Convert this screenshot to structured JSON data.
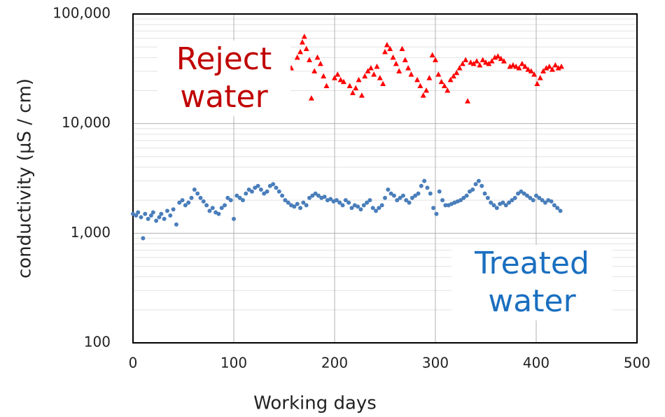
{
  "chart_data": {
    "type": "scatter",
    "xlabel": "Working days",
    "ylabel": "conductivity (µS / cm)",
    "xlim": [
      0,
      500
    ],
    "xticks": [
      0,
      100,
      200,
      300,
      400,
      500
    ],
    "ylim": [
      100,
      100000
    ],
    "yticks": [
      100,
      {
        "value": 1000,
        "label": "1,000"
      },
      {
        "value": 10000,
        "label": "10,000"
      },
      {
        "value": 100000,
        "label": "100,000"
      }
    ],
    "log_scale_y": true,
    "grid": true,
    "minor_grid": true,
    "series": [
      {
        "name": "Treated water",
        "color": "#4a7ebb",
        "marker": "circle",
        "x": [
          0,
          3,
          5,
          8,
          10,
          12,
          15,
          18,
          20,
          23,
          26,
          28,
          31,
          34,
          37,
          40,
          43,
          46,
          49,
          52,
          55,
          58,
          61,
          64,
          67,
          70,
          73,
          76,
          79,
          82,
          85,
          88,
          91,
          94,
          97,
          100,
          103,
          106,
          109,
          112,
          115,
          118,
          121,
          124,
          127,
          130,
          133,
          136,
          139,
          142,
          145,
          148,
          151,
          154,
          157,
          160,
          163,
          166,
          169,
          172,
          175,
          178,
          181,
          184,
          187,
          190,
          193,
          196,
          199,
          202,
          205,
          208,
          211,
          214,
          217,
          220,
          223,
          226,
          229,
          232,
          235,
          238,
          241,
          244,
          247,
          250,
          253,
          256,
          259,
          262,
          265,
          268,
          271,
          274,
          277,
          280,
          283,
          286,
          289,
          292,
          295,
          298,
          301,
          304,
          307,
          310,
          313,
          316,
          319,
          322,
          325,
          328,
          331,
          334,
          337,
          340,
          343,
          346,
          349,
          352,
          355,
          358,
          361,
          364,
          367,
          370,
          373,
          376,
          379,
          382,
          385,
          388,
          391,
          394,
          397,
          400,
          403,
          406,
          409,
          412,
          415,
          418,
          421,
          424
        ],
        "values": [
          1500,
          1450,
          1550,
          1400,
          900,
          1500,
          1350,
          1450,
          1550,
          1300,
          1400,
          1500,
          1350,
          1600,
          1450,
          1650,
          1200,
          1900,
          2000,
          1800,
          1900,
          2100,
          2500,
          2300,
          2100,
          1950,
          1800,
          1600,
          1700,
          1550,
          1500,
          1700,
          1800,
          2100,
          2000,
          1350,
          2200,
          2100,
          2000,
          2300,
          2500,
          2400,
          2600,
          2700,
          2500,
          2300,
          2400,
          2700,
          2800,
          2600,
          2400,
          2200,
          2000,
          1900,
          1800,
          1750,
          1850,
          1700,
          1900,
          1800,
          2100,
          2200,
          2300,
          2200,
          2100,
          2150,
          2000,
          2050,
          1950,
          2000,
          1900,
          1800,
          2000,
          1900,
          1700,
          1800,
          1750,
          1650,
          1800,
          1900,
          2000,
          1700,
          1600,
          1700,
          1800,
          2100,
          2500,
          2300,
          2200,
          2000,
          2100,
          2200,
          2000,
          1900,
          2100,
          2200,
          2300,
          2700,
          3000,
          2600,
          2300,
          1700,
          1500,
          2400,
          2000,
          1800,
          1800,
          1850,
          1900,
          1950,
          2000,
          2100,
          2200,
          2400,
          2500,
          2800,
          3000,
          2700,
          2300,
          2100,
          1900,
          1800,
          1700,
          1850,
          1900,
          1800,
          1900,
          2000,
          2100,
          2300,
          2400,
          2300,
          2200,
          2100,
          2000,
          2200,
          2100,
          2000,
          1900,
          2000,
          1950,
          1800,
          1700,
          1600
        ]
      },
      {
        "name": "Reject water",
        "color": "#ff0000",
        "marker": "triangle",
        "x": [
          157,
          163,
          166,
          168,
          170,
          172,
          175,
          177,
          180,
          183,
          186,
          189,
          192,
          200,
          203,
          206,
          209,
          215,
          218,
          221,
          224,
          227,
          230,
          233,
          236,
          239,
          242,
          245,
          248,
          250,
          252,
          255,
          258,
          261,
          264,
          267,
          270,
          273,
          276,
          282,
          285,
          288,
          291,
          294,
          297,
          300,
          303,
          306,
          309,
          312,
          315,
          318,
          321,
          324,
          327,
          330,
          332,
          335,
          338,
          341,
          344,
          347,
          350,
          353,
          356,
          359,
          362,
          365,
          368,
          374,
          377,
          380,
          383,
          386,
          389,
          392,
          395,
          398,
          401,
          404,
          407,
          410,
          413,
          416,
          419,
          422,
          425
        ],
        "values": [
          32000,
          40000,
          45000,
          55000,
          62000,
          48000,
          38000,
          17000,
          30000,
          40000,
          35000,
          27000,
          22000,
          26000,
          28000,
          25000,
          24000,
          22000,
          19000,
          21000,
          25000,
          18000,
          27000,
          30000,
          32000,
          28000,
          33000,
          26000,
          23000,
          45000,
          52000,
          48000,
          40000,
          35000,
          30000,
          48000,
          38000,
          32000,
          28000,
          25000,
          22000,
          18000,
          20000,
          26000,
          42000,
          38000,
          28000,
          24000,
          22000,
          20000,
          25000,
          27000,
          29000,
          32000,
          35000,
          38000,
          16000,
          36000,
          35000,
          37000,
          34000,
          38000,
          36000,
          35000,
          37000,
          40000,
          41000,
          39000,
          37000,
          33000,
          34000,
          33000,
          32000,
          35000,
          33000,
          31000,
          30000,
          28000,
          23000,
          26000,
          30000,
          32000,
          33000,
          31000,
          34000,
          32000,
          33000
        ]
      }
    ]
  }
}
